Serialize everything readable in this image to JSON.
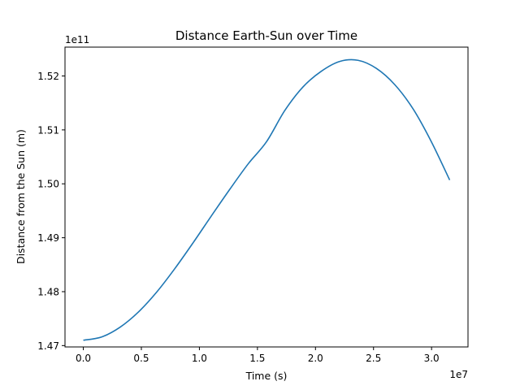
{
  "chart_data": {
    "type": "line",
    "title": "Distance Earth-Sun over Time",
    "xlabel": "Time (s)",
    "ylabel": "Distance from the Sun (m)",
    "x_offset_label": "1e7",
    "y_offset_label": "1e11",
    "x_ticks": [
      0,
      0.5,
      1.0,
      1.5,
      2.0,
      2.5,
      3.0
    ],
    "x_tick_labels": [
      "0.0",
      "0.5",
      "1.0",
      "1.5",
      "2.0",
      "2.5",
      "3.0"
    ],
    "y_ticks": [
      1.47,
      1.48,
      1.49,
      1.5,
      1.51,
      1.52
    ],
    "y_tick_labels": [
      "1.47",
      "1.48",
      "1.49",
      "1.50",
      "1.51",
      "1.52"
    ],
    "xlim": [
      -0.1578,
      3.3138
    ],
    "ylim": [
      1.46975,
      1.52535
    ],
    "series": [
      {
        "color": "#1f77b4",
        "x": [
          0.0,
          0.1578,
          0.3156,
          0.4734,
          0.6312,
          0.789,
          0.9468,
          1.1046,
          1.2624,
          1.4202,
          1.578,
          1.7358,
          1.8936,
          2.0514,
          2.2092,
          2.367,
          2.5248,
          2.6826,
          2.8404,
          2.9982,
          3.156
        ],
        "y": [
          1.471,
          1.4716,
          1.4734,
          1.4762,
          1.4799,
          1.4843,
          1.4891,
          1.4941,
          1.499,
          1.5037,
          1.5078,
          1.5136,
          1.518,
          1.5209,
          1.5227,
          1.5229,
          1.5214,
          1.5184,
          1.5139,
          1.5078,
          1.5007
        ]
      }
    ]
  }
}
